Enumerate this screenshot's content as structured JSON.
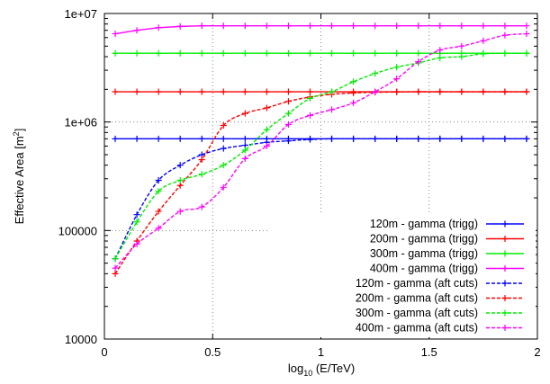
{
  "chart_data": {
    "type": "line",
    "title": "",
    "xlabel": "log",
    "xlabel_sub": "10",
    "xlabel_rest": " (E/TeV)",
    "ylabel": "Effective Area [m",
    "ylabel_sup": "2",
    "ylabel_end": "]",
    "xlim": [
      0,
      2
    ],
    "ylim": [
      10000,
      10000000
    ],
    "yscale": "log",
    "x_ticks": [
      {
        "value": 0,
        "label": "0"
      },
      {
        "value": 0.5,
        "label": "0.5"
      },
      {
        "value": 1,
        "label": "1"
      },
      {
        "value": 1.5,
        "label": "1.5"
      },
      {
        "value": 2,
        "label": "2"
      }
    ],
    "y_ticks": [
      {
        "value": 10000,
        "label": "10000"
      },
      {
        "value": 100000,
        "label": "100000"
      },
      {
        "value": 1000000,
        "label": "1e+06"
      },
      {
        "value": 10000000,
        "label": "1e+07"
      }
    ],
    "grid": "dotted",
    "legend_position": "bottom-right",
    "x": [
      0.05,
      0.15,
      0.25,
      0.35,
      0.45,
      0.55,
      0.65,
      0.75,
      0.85,
      0.95,
      1.05,
      1.15,
      1.25,
      1.35,
      1.45,
      1.55,
      1.65,
      1.75,
      1.85,
      1.95
    ],
    "series": [
      {
        "name": "120m - gamma (trigg)",
        "color": "#0000ff",
        "style": "solid",
        "values": [
          700000,
          700000,
          700000,
          700000,
          700000,
          700000,
          700000,
          700000,
          700000,
          700000,
          700000,
          700000,
          700000,
          700000,
          700000,
          700000,
          700000,
          700000,
          700000,
          700000
        ]
      },
      {
        "name": "200m - gamma (trigg)",
        "color": "#ff0000",
        "style": "solid",
        "values": [
          1900000,
          1900000,
          1900000,
          1900000,
          1900000,
          1900000,
          1900000,
          1900000,
          1900000,
          1900000,
          1900000,
          1900000,
          1900000,
          1900000,
          1900000,
          1900000,
          1900000,
          1900000,
          1900000,
          1900000
        ]
      },
      {
        "name": "300m - gamma (trigg)",
        "color": "#00ee00",
        "style": "solid",
        "values": [
          4300000,
          4300000,
          4300000,
          4300000,
          4300000,
          4300000,
          4300000,
          4300000,
          4300000,
          4300000,
          4300000,
          4300000,
          4300000,
          4300000,
          4300000,
          4300000,
          4300000,
          4300000,
          4300000,
          4300000
        ]
      },
      {
        "name": "400m - gamma (trigg)",
        "color": "#ff00ff",
        "style": "solid",
        "values": [
          6500000,
          7000000,
          7400000,
          7600000,
          7700000,
          7700000,
          7700000,
          7700000,
          7700000,
          7700000,
          7700000,
          7700000,
          7700000,
          7700000,
          7700000,
          7700000,
          7700000,
          7700000,
          7700000,
          7700000
        ]
      },
      {
        "name": "120m - gamma  (aft cuts)",
        "color": "#0000ff",
        "style": "dashed",
        "values": [
          55000,
          140000,
          290000,
          400000,
          500000,
          570000,
          610000,
          650000,
          670000,
          690000,
          700000,
          700000,
          700000,
          700000,
          700000,
          700000,
          700000,
          700000,
          700000,
          700000
        ]
      },
      {
        "name": "200m - gamma  (aft cuts)",
        "color": "#ff0000",
        "style": "dashed",
        "values": [
          40000,
          80000,
          150000,
          260000,
          450000,
          930000,
          1200000,
          1350000,
          1550000,
          1700000,
          1800000,
          1850000,
          1880000,
          1890000,
          1900000,
          1900000,
          1900000,
          1900000,
          1900000,
          1900000
        ]
      },
      {
        "name": "300m - gamma  (aft cuts)",
        "color": "#00ee00",
        "style": "dashed",
        "values": [
          55000,
          120000,
          230000,
          290000,
          330000,
          400000,
          550000,
          850000,
          1200000,
          1650000,
          1900000,
          2350000,
          2800000,
          3200000,
          3500000,
          3900000,
          4000000,
          4250000,
          4300000,
          4300000
        ]
      },
      {
        "name": "400m - gamma  (aft cuts)",
        "color": "#ff00ff",
        "style": "dashed",
        "values": [
          45000,
          75000,
          105000,
          150000,
          165000,
          250000,
          460000,
          600000,
          950000,
          1150000,
          1300000,
          1500000,
          1900000,
          2500000,
          3600000,
          4600000,
          5000000,
          5600000,
          6300000,
          6500000
        ]
      }
    ]
  }
}
